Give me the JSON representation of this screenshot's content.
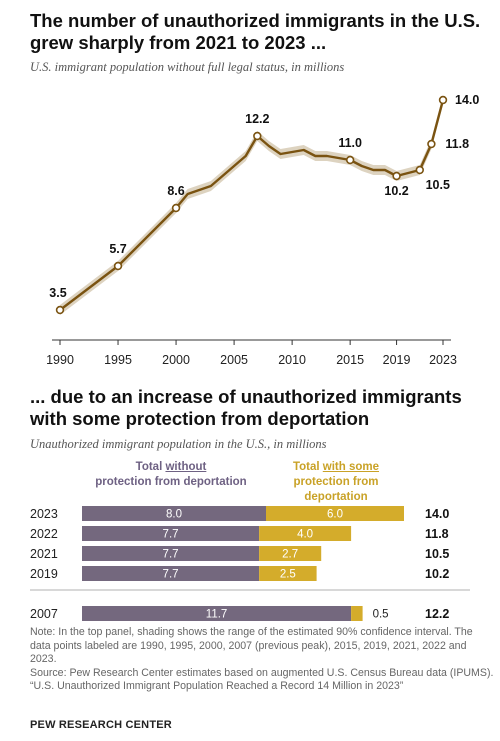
{
  "header": {
    "title": "The number of unauthorized immigrants in the U.S. grew sharply from 2021 to 2023 ...",
    "subtitle": "U.S. immigrant population without full legal status, in millions"
  },
  "second_panel": {
    "title": "... due to an increase of unauthorized immigrants with some protection from deportation",
    "subtitle": "Unauthorized immigrant population in the U.S., in millions",
    "legend_without_prefix": "Total ",
    "legend_without_em": "without",
    "legend_without_suffix": "protection from deportation",
    "legend_with_prefix": "Total ",
    "legend_with_em": "with some",
    "legend_with_suffix": "protection from deportation"
  },
  "colors": {
    "line": "#7a5311",
    "band": "#ddd3c0",
    "without": "#74687e",
    "with": "#d4ac2b"
  },
  "chart_data": [
    {
      "type": "line",
      "title": "The number of unauthorized immigrants in the U.S. grew sharply from 2021 to 2023 ...",
      "subtitle": "U.S. immigrant population without full legal status, in millions",
      "x": [
        1990,
        1995,
        2000,
        2001,
        2002,
        2003,
        2004,
        2005,
        2006,
        2007,
        2008,
        2009,
        2010,
        2011,
        2012,
        2013,
        2014,
        2015,
        2016,
        2017,
        2018,
        2019,
        2021,
        2022,
        2023
      ],
      "series": [
        {
          "values": [
            3.5,
            5.7,
            8.6,
            9.3,
            9.5,
            9.7,
            10.2,
            10.7,
            11.2,
            12.2,
            11.7,
            11.3,
            11.4,
            11.5,
            11.2,
            11.2,
            11.1,
            11.0,
            10.7,
            10.5,
            10.5,
            10.2,
            10.5,
            11.8,
            14.0
          ]
        }
      ],
      "labeled_points": [
        {
          "x": 1990,
          "label": "3.5"
        },
        {
          "x": 1995,
          "label": "5.7"
        },
        {
          "x": 2000,
          "label": "8.6"
        },
        {
          "x": 2007,
          "label": "12.2"
        },
        {
          "x": 2015,
          "label": "11.0"
        },
        {
          "x": 2019,
          "label": "10.2"
        },
        {
          "x": 2021,
          "label": "10.5"
        },
        {
          "x": 2022,
          "label": "11.8"
        },
        {
          "x": 2023,
          "label": "14.0"
        }
      ],
      "x_ticks": [
        "1990",
        "1995",
        "2000",
        "2005",
        "2010",
        "2015",
        "2019",
        "2023"
      ],
      "xlim": [
        1990,
        2023
      ],
      "ylim": [
        2,
        15
      ],
      "confidence_band": "90%",
      "grid": false
    },
    {
      "type": "bar",
      "stacked": true,
      "orientation": "horizontal",
      "title": "... due to an increase of unauthorized immigrants with some protection from deportation",
      "subtitle": "Unauthorized immigrant population in the U.S., in millions",
      "categories": [
        "2023",
        "2022",
        "2021",
        "2019",
        "2007"
      ],
      "series": [
        {
          "name": "Total without protection from deportation",
          "values": [
            8.0,
            7.7,
            7.7,
            7.7,
            11.7
          ],
          "labels": [
            "8.0",
            "7.7",
            "7.7",
            "7.7",
            "11.7"
          ]
        },
        {
          "name": "Total with some protection from deportation",
          "values": [
            6.0,
            4.0,
            2.7,
            2.5,
            0.5
          ],
          "labels": [
            "6.0",
            "4.0",
            "2.7",
            "2.5",
            "0.5"
          ]
        }
      ],
      "totals": [
        "14.0",
        "11.8",
        "10.5",
        "10.2",
        "12.2"
      ],
      "xlim": [
        0,
        14
      ]
    }
  ],
  "notes": {
    "note": "Note: In the top panel, shading shows the range of the estimated 90% confidence interval. The data points labeled are 1990, 1995, 2000, 2007 (previous peak), 2015, 2019, 2021, 2022 and 2023.",
    "source": "Source: Pew Research Center estimates based on augmented U.S. Census Bureau data (IPUMS).",
    "report": "“U.S. Unauthorized Immigrant Population Reached a Record 14 Million in 2023”",
    "brand": "PEW RESEARCH CENTER"
  }
}
